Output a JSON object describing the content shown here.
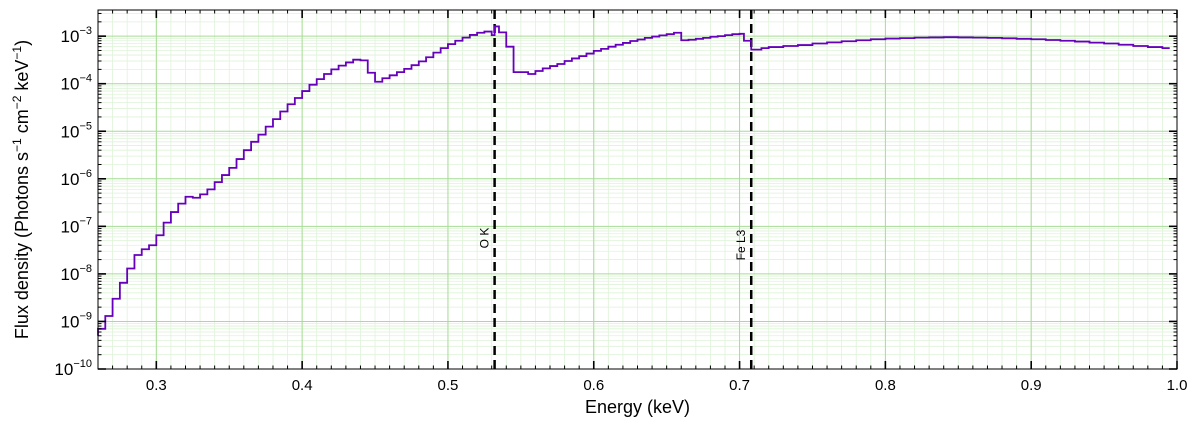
{
  "chart_data": {
    "type": "line",
    "step": true,
    "title": "",
    "xlabel": "Energy (keV)",
    "ylabel_parts": [
      "Flux density (Photons s",
      "−1",
      " cm",
      "−2",
      " keV",
      "−1",
      ")"
    ],
    "xlim": [
      0.26,
      1.0
    ],
    "ylim_exponent": [
      -10,
      -2.45
    ],
    "y_scale": "log",
    "grid": true,
    "x_ticks": [
      {
        "value": 0.3,
        "label": "0.3"
      },
      {
        "value": 0.4,
        "label": "0.4"
      },
      {
        "value": 0.5,
        "label": "0.5"
      },
      {
        "value": 0.6,
        "label": "0.6"
      },
      {
        "value": 0.7,
        "label": "0.7"
      },
      {
        "value": 0.8,
        "label": "0.8"
      },
      {
        "value": 0.9,
        "label": "0.9"
      },
      {
        "value": 1.0,
        "label": "1.0"
      }
    ],
    "y_ticks": [
      {
        "exp": -10,
        "base": "10",
        "sup": "−10"
      },
      {
        "exp": -9,
        "base": "10",
        "sup": "−9"
      },
      {
        "exp": -8,
        "base": "10",
        "sup": "−8"
      },
      {
        "exp": -7,
        "base": "10",
        "sup": "−7"
      },
      {
        "exp": -6,
        "base": "10",
        "sup": "−6"
      },
      {
        "exp": -5,
        "base": "10",
        "sup": "−5"
      },
      {
        "exp": -4,
        "base": "10",
        "sup": "−4"
      },
      {
        "exp": -3,
        "base": "10",
        "sup": "−3"
      }
    ],
    "edges": [
      {
        "label": "O K",
        "energy": 0.532
      },
      {
        "label": "Fe L3",
        "energy": 0.708
      }
    ],
    "series": [
      {
        "color": "#6600bb",
        "points": [
          [
            0.26,
            5e-10
          ],
          [
            0.26,
            7e-10
          ],
          [
            0.265,
            1.3e-09
          ],
          [
            0.27,
            3e-09
          ],
          [
            0.275,
            6.5e-09
          ],
          [
            0.28,
            1.3e-08
          ],
          [
            0.285,
            2.5e-08
          ],
          [
            0.29,
            3.3e-08
          ],
          [
            0.295,
            4e-08
          ],
          [
            0.3,
            6.5e-08
          ],
          [
            0.305,
            1.2e-07
          ],
          [
            0.31,
            2e-07
          ],
          [
            0.315,
            3e-07
          ],
          [
            0.32,
            4.2e-07
          ],
          [
            0.325,
            4e-07
          ],
          [
            0.33,
            4.7e-07
          ],
          [
            0.335,
            6e-07
          ],
          [
            0.34,
            8.5e-07
          ],
          [
            0.345,
            1.2e-06
          ],
          [
            0.35,
            1.7e-06
          ],
          [
            0.355,
            2.6e-06
          ],
          [
            0.36,
            4e-06
          ],
          [
            0.365,
            6e-06
          ],
          [
            0.37,
            8.5e-06
          ],
          [
            0.375,
            1.25e-05
          ],
          [
            0.38,
            1.8e-05
          ],
          [
            0.385,
            2.6e-05
          ],
          [
            0.39,
            3.7e-05
          ],
          [
            0.395,
            5e-05
          ],
          [
            0.4,
            7e-05
          ],
          [
            0.405,
            9.5e-05
          ],
          [
            0.41,
            0.000125
          ],
          [
            0.415,
            0.00016
          ],
          [
            0.42,
            0.0002
          ],
          [
            0.425,
            0.00024
          ],
          [
            0.43,
            0.00028
          ],
          [
            0.435,
            0.00032
          ],
          [
            0.44,
            0.00031
          ],
          [
            0.445,
            0.00017
          ],
          [
            0.45,
            0.00011
          ],
          [
            0.455,
            0.00013
          ],
          [
            0.46,
            0.00015
          ],
          [
            0.465,
            0.000175
          ],
          [
            0.47,
            0.000205
          ],
          [
            0.475,
            0.000245
          ],
          [
            0.48,
            0.000295
          ],
          [
            0.485,
            0.00036
          ],
          [
            0.49,
            0.00045
          ],
          [
            0.495,
            0.00056
          ],
          [
            0.5,
            0.00068
          ],
          [
            0.505,
            0.0008
          ],
          [
            0.51,
            0.00093
          ],
          [
            0.515,
            0.00106
          ],
          [
            0.52,
            0.00118
          ],
          [
            0.525,
            0.00125
          ],
          [
            0.53,
            0.00105
          ],
          [
            0.532,
            0.0016
          ],
          [
            0.535,
            0.0012
          ],
          [
            0.54,
            0.0006
          ],
          [
            0.545,
            0.000175
          ],
          [
            0.555,
            0.00016
          ],
          [
            0.56,
            0.000185
          ],
          [
            0.565,
            0.00021
          ],
          [
            0.57,
            0.000235
          ],
          [
            0.575,
            0.00026
          ],
          [
            0.58,
            0.0003
          ],
          [
            0.585,
            0.00034
          ],
          [
            0.59,
            0.00038
          ],
          [
            0.595,
            0.00043
          ],
          [
            0.6,
            0.00049
          ],
          [
            0.605,
            0.00054
          ],
          [
            0.61,
            0.0006
          ],
          [
            0.615,
            0.00066
          ],
          [
            0.62,
            0.00072
          ],
          [
            0.625,
            0.00079
          ],
          [
            0.63,
            0.00085
          ],
          [
            0.635,
            0.00092
          ],
          [
            0.64,
            0.00098
          ],
          [
            0.645,
            0.00104
          ],
          [
            0.65,
            0.0011
          ],
          [
            0.655,
            0.00118
          ],
          [
            0.66,
            0.00082
          ],
          [
            0.665,
            0.00084
          ],
          [
            0.67,
            0.00088
          ],
          [
            0.675,
            0.00092
          ],
          [
            0.68,
            0.00097
          ],
          [
            0.685,
            0.001
          ],
          [
            0.69,
            0.00105
          ],
          [
            0.695,
            0.0011
          ],
          [
            0.7,
            0.00112
          ],
          [
            0.703,
            0.0008
          ],
          [
            0.708,
            0.00052
          ],
          [
            0.715,
            0.00056
          ],
          [
            0.72,
            0.00059
          ],
          [
            0.73,
            0.00062
          ],
          [
            0.74,
            0.00065
          ],
          [
            0.75,
            0.0007
          ],
          [
            0.76,
            0.00074
          ],
          [
            0.77,
            0.00078
          ],
          [
            0.78,
            0.00082
          ],
          [
            0.79,
            0.00086
          ],
          [
            0.8,
            0.00089
          ],
          [
            0.81,
            0.00091
          ],
          [
            0.82,
            0.00093
          ],
          [
            0.83,
            0.00094
          ],
          [
            0.84,
            0.00095
          ],
          [
            0.85,
            0.00094
          ],
          [
            0.86,
            0.00093
          ],
          [
            0.87,
            0.00092
          ],
          [
            0.88,
            0.0009
          ],
          [
            0.89,
            0.00088
          ],
          [
            0.9,
            0.00086
          ],
          [
            0.91,
            0.00083
          ],
          [
            0.92,
            0.0008
          ],
          [
            0.93,
            0.00077
          ],
          [
            0.94,
            0.00073
          ],
          [
            0.95,
            0.0007
          ],
          [
            0.96,
            0.00066
          ],
          [
            0.97,
            0.00062
          ],
          [
            0.98,
            0.00059
          ],
          [
            0.99,
            0.00056
          ],
          [
            0.995,
            0.00056
          ]
        ]
      }
    ]
  }
}
